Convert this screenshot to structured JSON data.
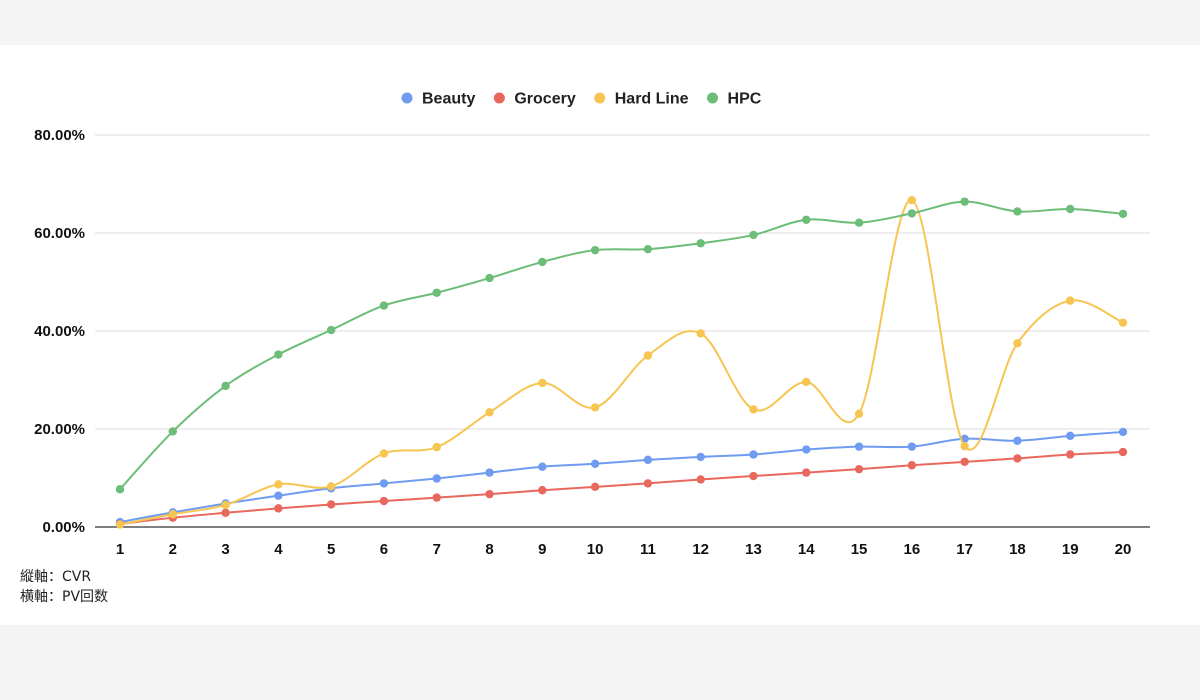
{
  "chart_data": {
    "type": "line",
    "title": "",
    "xlabel": "",
    "ylabel": "",
    "categories": [
      "1",
      "2",
      "3",
      "4",
      "5",
      "6",
      "7",
      "8",
      "9",
      "10",
      "11",
      "12",
      "13",
      "14",
      "15",
      "16",
      "17",
      "18",
      "19",
      "20"
    ],
    "y_ticks": [
      "0.00%",
      "20.00%",
      "40.00%",
      "60.00%",
      "80.00%"
    ],
    "ylim": [
      0,
      80
    ],
    "y_unit": "percent",
    "grid": true,
    "smooth": true,
    "legend_position": "top-center",
    "series": [
      {
        "name": "Beauty",
        "color": "#6f9bf0",
        "values": [
          1.0,
          3.0,
          4.8,
          6.4,
          7.9,
          8.9,
          9.9,
          11.1,
          12.3,
          12.9,
          13.7,
          14.3,
          14.8,
          15.8,
          16.4,
          16.4,
          18.0,
          17.6,
          18.6,
          19.4
        ]
      },
      {
        "name": "Grocery",
        "color": "#e8685d",
        "values": [
          0.6,
          1.9,
          2.9,
          3.8,
          4.6,
          5.3,
          6.0,
          6.7,
          7.5,
          8.2,
          8.9,
          9.7,
          10.4,
          11.1,
          11.8,
          12.6,
          13.3,
          14.0,
          14.8,
          15.3
        ]
      },
      {
        "name": "Hard Line",
        "color": "#f6c552",
        "values": [
          0.5,
          2.6,
          4.5,
          8.7,
          8.3,
          15.0,
          16.3,
          23.4,
          29.4,
          24.4,
          35.0,
          39.5,
          24.0,
          29.6,
          23.1,
          66.7,
          16.5,
          37.5,
          46.2,
          41.7
        ]
      },
      {
        "name": "HPC",
        "color": "#6bbd77",
        "values": [
          7.7,
          19.5,
          28.8,
          35.2,
          40.2,
          45.2,
          47.8,
          50.8,
          54.1,
          56.5,
          56.7,
          57.9,
          59.6,
          62.7,
          62.1,
          64.0,
          66.4,
          64.4,
          64.9,
          63.9
        ]
      }
    ]
  },
  "notes": {
    "vertical_axis": "縦軸：CVR",
    "horizontal_axis": "横軸：PV回数"
  }
}
